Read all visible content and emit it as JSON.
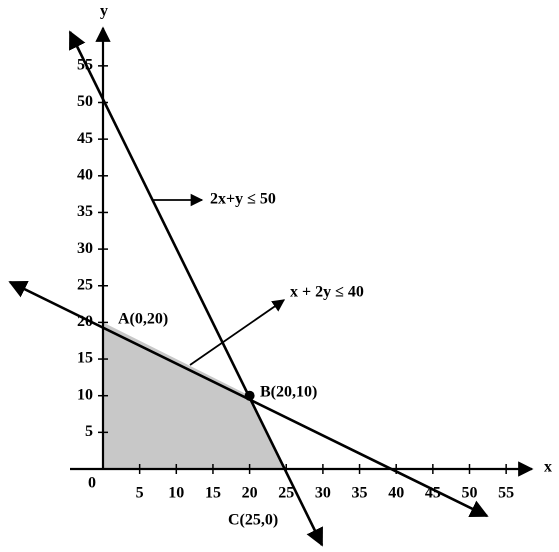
{
  "diagram": {
    "x_axis_label": "x",
    "y_axis_label": "y",
    "origin_label": "0",
    "x_ticks": [
      "5",
      "10",
      "15",
      "20",
      "25",
      "30",
      "35",
      "40",
      "45",
      "50",
      "55"
    ],
    "y_ticks": [
      "5",
      "10",
      "15",
      "20",
      "25",
      "30",
      "35",
      "40",
      "45",
      "50",
      "55"
    ],
    "constraint_1": "2x+y ≤ 50",
    "constraint_2": "x + 2y ≤ 40",
    "point_a": "A(0,20)",
    "point_b": "B(20,10)",
    "point_c": "C(25,0)"
  }
}
